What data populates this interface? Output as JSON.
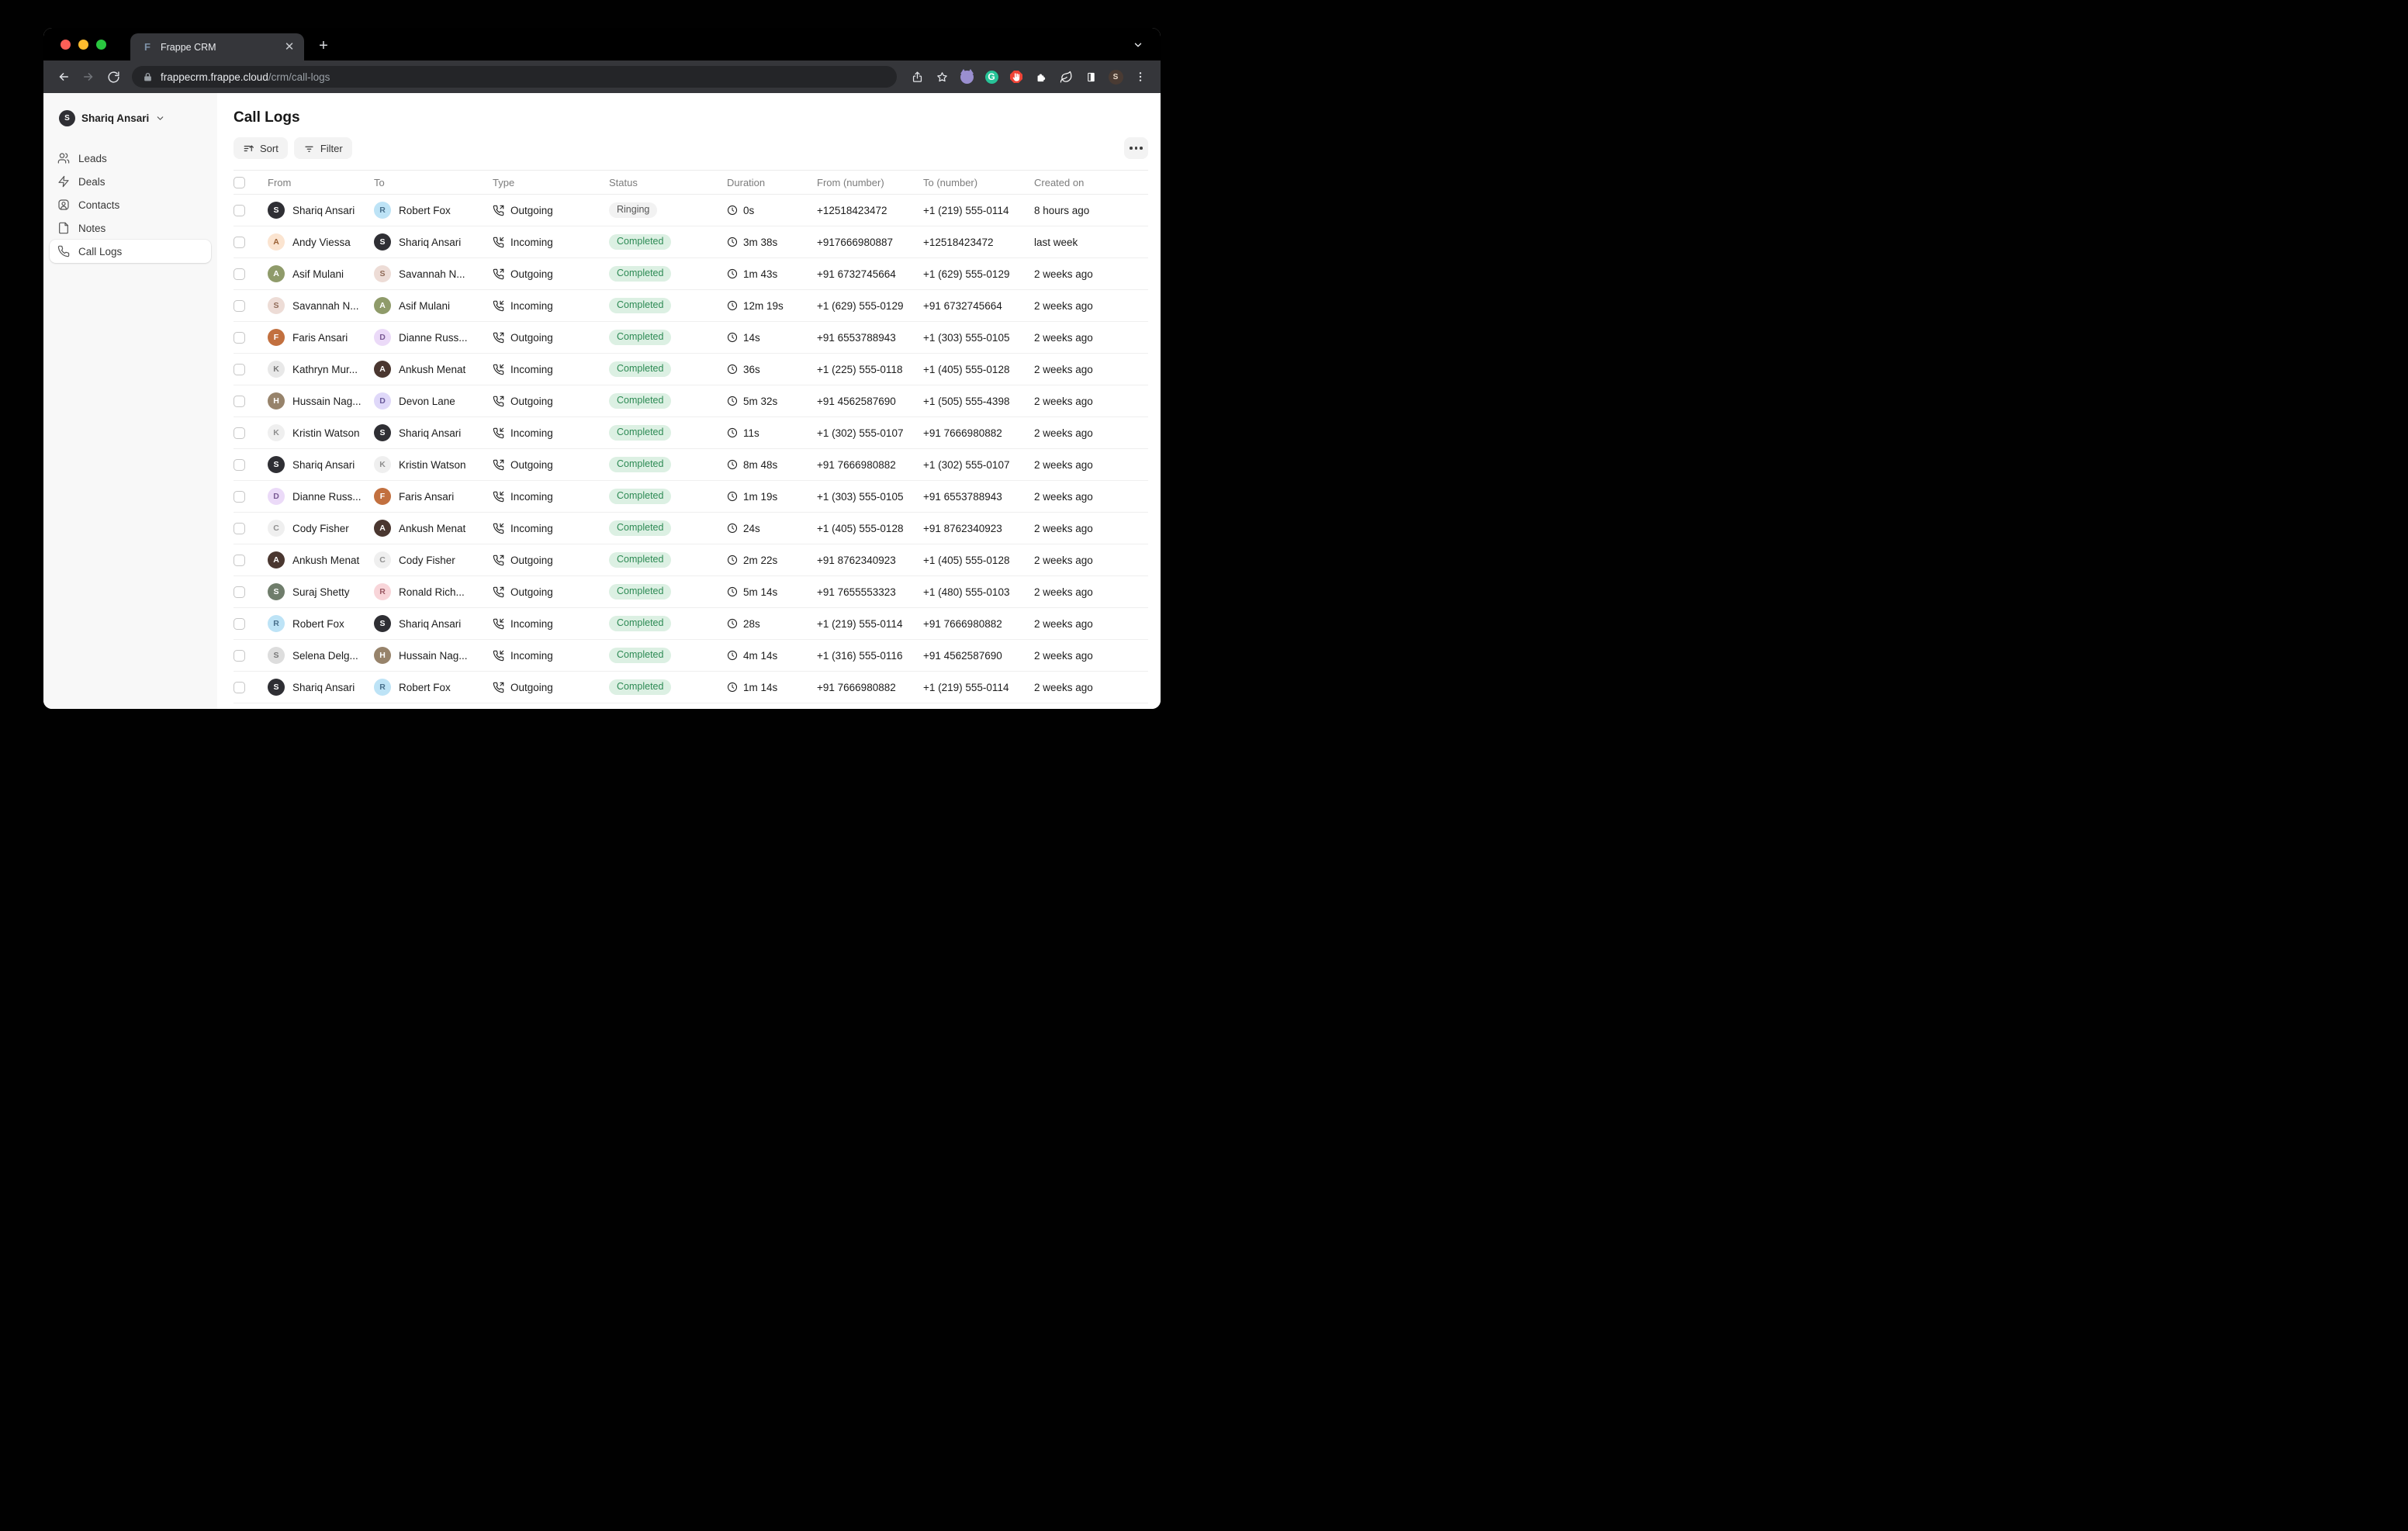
{
  "browser": {
    "tab_title": "Frappe CRM",
    "favicon_letter": "F",
    "url_domain": "frappecrm.frappe.cloud",
    "url_path": "/crm/call-logs",
    "extensions": [
      "octocat",
      "grammarly",
      "adblock",
      "puzzle",
      "leaf",
      "panel"
    ],
    "profile_initial": "S"
  },
  "sidebar": {
    "user": {
      "name": "Shariq Ansari",
      "initial": "S"
    },
    "items": [
      {
        "label": "Leads",
        "icon": "leads",
        "active": false
      },
      {
        "label": "Deals",
        "icon": "deals",
        "active": false
      },
      {
        "label": "Contacts",
        "icon": "contacts",
        "active": false
      },
      {
        "label": "Notes",
        "icon": "notes",
        "active": false
      },
      {
        "label": "Call Logs",
        "icon": "call-logs",
        "active": true
      }
    ]
  },
  "page": {
    "title": "Call Logs",
    "sort_label": "Sort",
    "filter_label": "Filter"
  },
  "status_colors": {
    "completed_bg": "#dcf0e3",
    "completed_fg": "#2d8a54",
    "ringing_bg": "#f2f2f2",
    "ringing_fg": "#565656"
  },
  "table": {
    "headers": {
      "from": "From",
      "to": "To",
      "type": "Type",
      "status": "Status",
      "duration": "Duration",
      "from_number": "From (number)",
      "to_number": "To (number)",
      "created": "Created on"
    },
    "rows": [
      {
        "from": {
          "name": "Shariq Ansari",
          "initial": "S",
          "bg": "#2f2f34",
          "fg": "#ffffff"
        },
        "to": {
          "name": "Robert Fox",
          "initial": "R",
          "bg": "#bde3f6",
          "fg": "#49708c"
        },
        "type": "Outgoing",
        "status": "Ringing",
        "duration": "0s",
        "from_number": "+12518423472",
        "to_number": "+1 (219) 555-0114",
        "created": "8 hours ago"
      },
      {
        "from": {
          "name": "Andy Viessa",
          "initial": "A",
          "bg": "#fbe4d0",
          "fg": "#9a6034"
        },
        "to": {
          "name": "Shariq Ansari",
          "initial": "S",
          "bg": "#2f2f34",
          "fg": "#ffffff"
        },
        "type": "Incoming",
        "status": "Completed",
        "duration": "3m 38s",
        "from_number": "+917666980887",
        "to_number": "+12518423472",
        "created": "last week"
      },
      {
        "from": {
          "name": "Asif Mulani",
          "initial": "A",
          "bg": "#8f9b6a",
          "fg": "#ffffff"
        },
        "to": {
          "name": "Savannah N...",
          "initial": "S",
          "bg": "#eddcd6",
          "fg": "#8f6a57"
        },
        "type": "Outgoing",
        "status": "Completed",
        "duration": "1m 43s",
        "from_number": "+91 6732745664",
        "to_number": "+1 (629) 555-0129",
        "created": "2 weeks ago"
      },
      {
        "from": {
          "name": "Savannah N...",
          "initial": "S",
          "bg": "#eddcd6",
          "fg": "#8f6a57"
        },
        "to": {
          "name": "Asif Mulani",
          "initial": "A",
          "bg": "#8f9b6a",
          "fg": "#ffffff"
        },
        "type": "Incoming",
        "status": "Completed",
        "duration": "12m 19s",
        "from_number": "+1 (629) 555-0129",
        "to_number": "+91 6732745664",
        "created": "2 weeks ago"
      },
      {
        "from": {
          "name": "Faris Ansari",
          "initial": "F",
          "bg": "#c2703f",
          "fg": "#ffffff"
        },
        "to": {
          "name": "Dianne Russ...",
          "initial": "D",
          "bg": "#ebdaf8",
          "fg": "#7a5a94"
        },
        "type": "Outgoing",
        "status": "Completed",
        "duration": "14s",
        "from_number": "+91 6553788943",
        "to_number": "+1 (303) 555-0105",
        "created": "2 weeks ago"
      },
      {
        "from": {
          "name": "Kathryn Mur...",
          "initial": "K",
          "bg": "#e8e8e8",
          "fg": "#777777"
        },
        "to": {
          "name": "Ankush Menat",
          "initial": "A",
          "bg": "#4a3730",
          "fg": "#ffffff"
        },
        "type": "Incoming",
        "status": "Completed",
        "duration": "36s",
        "from_number": "+1 (225) 555-0118",
        "to_number": "+1 (405) 555-0128",
        "created": "2 weeks ago"
      },
      {
        "from": {
          "name": "Hussain Nag...",
          "initial": "H",
          "bg": "#97836b",
          "fg": "#ffffff"
        },
        "to": {
          "name": "Devon Lane",
          "initial": "D",
          "bg": "#dfd8f9",
          "fg": "#6a5a9a"
        },
        "type": "Outgoing",
        "status": "Completed",
        "duration": "5m 32s",
        "from_number": "+91 4562587690",
        "to_number": "+1 (505) 555-4398",
        "created": "2 weeks ago"
      },
      {
        "from": {
          "name": "Kristin Watson",
          "initial": "K",
          "bg": "#efefef",
          "fg": "#8e8e8e"
        },
        "to": {
          "name": "Shariq Ansari",
          "initial": "S",
          "bg": "#2f2f34",
          "fg": "#ffffff"
        },
        "type": "Incoming",
        "status": "Completed",
        "duration": "11s",
        "from_number": "+1 (302) 555-0107",
        "to_number": "+91 7666980882",
        "created": "2 weeks ago"
      },
      {
        "from": {
          "name": "Shariq Ansari",
          "initial": "S",
          "bg": "#2f2f34",
          "fg": "#ffffff"
        },
        "to": {
          "name": "Kristin Watson",
          "initial": "K",
          "bg": "#efefef",
          "fg": "#8e8e8e"
        },
        "type": "Outgoing",
        "status": "Completed",
        "duration": "8m 48s",
        "from_number": "+91 7666980882",
        "to_number": "+1 (302) 555-0107",
        "created": "2 weeks ago"
      },
      {
        "from": {
          "name": "Dianne Russ...",
          "initial": "D",
          "bg": "#ebdaf8",
          "fg": "#7a5a94"
        },
        "to": {
          "name": "Faris Ansari",
          "initial": "F",
          "bg": "#c2703f",
          "fg": "#ffffff"
        },
        "type": "Incoming",
        "status": "Completed",
        "duration": "1m 19s",
        "from_number": "+1 (303) 555-0105",
        "to_number": "+91 6553788943",
        "created": "2 weeks ago"
      },
      {
        "from": {
          "name": "Cody Fisher",
          "initial": "C",
          "bg": "#efefef",
          "fg": "#8e8e8e"
        },
        "to": {
          "name": "Ankush Menat",
          "initial": "A",
          "bg": "#4a3730",
          "fg": "#ffffff"
        },
        "type": "Incoming",
        "status": "Completed",
        "duration": "24s",
        "from_number": "+1 (405) 555-0128",
        "to_number": "+91 8762340923",
        "created": "2 weeks ago"
      },
      {
        "from": {
          "name": "Ankush Menat",
          "initial": "A",
          "bg": "#4a3730",
          "fg": "#ffffff"
        },
        "to": {
          "name": "Cody Fisher",
          "initial": "C",
          "bg": "#efefef",
          "fg": "#8e8e8e"
        },
        "type": "Outgoing",
        "status": "Completed",
        "duration": "2m 22s",
        "from_number": "+91 8762340923",
        "to_number": "+1 (405) 555-0128",
        "created": "2 weeks ago"
      },
      {
        "from": {
          "name": "Suraj Shetty",
          "initial": "S",
          "bg": "#6f7d6b",
          "fg": "#ffffff"
        },
        "to": {
          "name": "Ronald Rich...",
          "initial": "R",
          "bg": "#f8d5d9",
          "fg": "#9a5a64"
        },
        "type": "Outgoing",
        "status": "Completed",
        "duration": "5m 14s",
        "from_number": "+91 7655553323",
        "to_number": "+1 (480) 555-0103",
        "created": "2 weeks ago"
      },
      {
        "from": {
          "name": "Robert Fox",
          "initial": "R",
          "bg": "#bde3f6",
          "fg": "#49708c"
        },
        "to": {
          "name": "Shariq Ansari",
          "initial": "S",
          "bg": "#2f2f34",
          "fg": "#ffffff"
        },
        "type": "Incoming",
        "status": "Completed",
        "duration": "28s",
        "from_number": "+1 (219) 555-0114",
        "to_number": "+91 7666980882",
        "created": "2 weeks ago"
      },
      {
        "from": {
          "name": "Selena Delg...",
          "initial": "S",
          "bg": "#dddddd",
          "fg": "#777777"
        },
        "to": {
          "name": "Hussain Nag...",
          "initial": "H",
          "bg": "#97836b",
          "fg": "#ffffff"
        },
        "type": "Incoming",
        "status": "Completed",
        "duration": "4m 14s",
        "from_number": "+1 (316) 555-0116",
        "to_number": "+91 4562587690",
        "created": "2 weeks ago"
      },
      {
        "from": {
          "name": "Shariq Ansari",
          "initial": "S",
          "bg": "#2f2f34",
          "fg": "#ffffff"
        },
        "to": {
          "name": "Robert Fox",
          "initial": "R",
          "bg": "#bde3f6",
          "fg": "#49708c"
        },
        "type": "Outgoing",
        "status": "Completed",
        "duration": "1m 14s",
        "from_number": "+91 7666980882",
        "to_number": "+1 (219) 555-0114",
        "created": "2 weeks ago"
      }
    ],
    "partial_row": {
      "from_bg": "#c9bc93",
      "to_bg": "#efefef",
      "status": "Completed"
    }
  }
}
